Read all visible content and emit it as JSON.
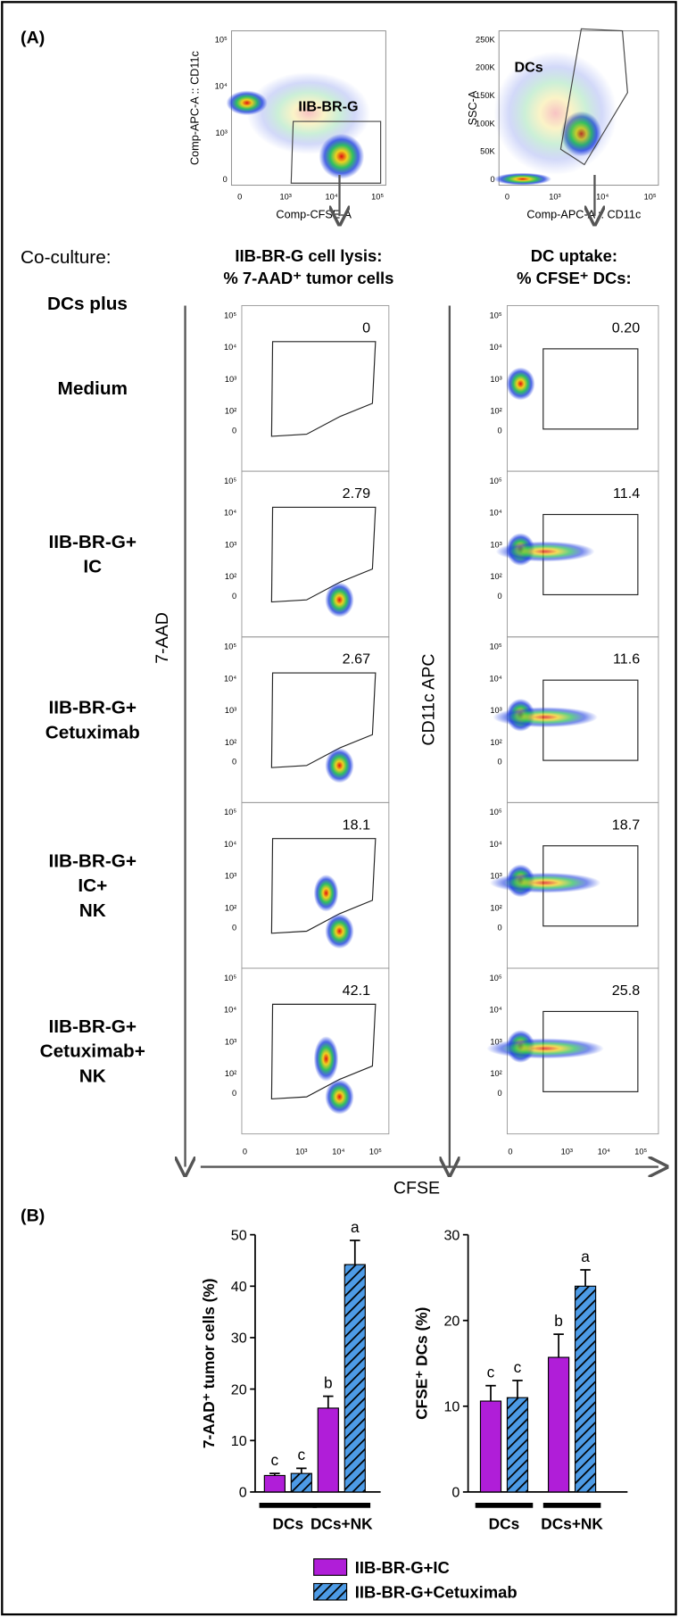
{
  "panel_a": {
    "label": "(A)",
    "gating_plots": [
      {
        "x_label": "Comp-CFSE-A",
        "y_label": "Comp-APC-A :: CD11c",
        "gate": "IIB-BR-G",
        "xticks": [
          "0",
          "10³",
          "10⁴",
          "10⁵"
        ],
        "yticks": [
          "10⁵",
          "10⁴",
          "10³",
          "0"
        ]
      },
      {
        "x_label": "Comp-APC-A :: CD11c",
        "y_label": "SSC-A",
        "gate": "DCs",
        "xticks": [
          "0",
          "10³",
          "10⁴",
          "10⁵"
        ],
        "yticks": [
          "250K",
          "200K",
          "150K",
          "100K",
          "50K",
          "0"
        ]
      }
    ],
    "row_header": "Co-culture:",
    "row_subheader": "DCs plus",
    "columns": [
      {
        "title": [
          "IIB-BR-G cell lysis:",
          "% 7-AAD⁺ tumor cells"
        ],
        "axis_label": "7-AAD",
        "axis_color": "#e8832a",
        "values": [
          "0",
          "2.79",
          "2.67",
          "18.1",
          "42.1"
        ]
      },
      {
        "title": [
          "DC uptake:",
          "% CFSE⁺ DCs:"
        ],
        "axis_label": "CD11c APC",
        "axis_color": "#e8212a",
        "values": [
          "0.20",
          "11.4",
          "11.6",
          "18.7",
          "25.8"
        ]
      }
    ],
    "rows": [
      [
        "Medium"
      ],
      [
        "IIB-BR-G+",
        "IC"
      ],
      [
        "IIB-BR-G+",
        "Cetuximab"
      ],
      [
        "IIB-BR-G+",
        "IC+",
        "NK"
      ],
      [
        "IIB-BR-G+",
        "Cetuximab+",
        "NK"
      ]
    ],
    "flow_yticks": [
      "10⁵",
      "10⁴",
      "10³",
      "10²",
      "0"
    ],
    "flow_xticks": [
      "0",
      "10³",
      "10⁴",
      "10⁵"
    ],
    "x_axis_label": "CFSE",
    "x_axis_color": "#22b14c"
  },
  "panel_b": {
    "label": "(B)"
  },
  "chart_data": [
    {
      "type": "bar",
      "y_label": "7-AAD⁺ tumor cells (%)",
      "categories": [
        "DCs",
        "DCs+NK"
      ],
      "ylim": [
        0,
        50
      ],
      "yticks": [
        0,
        10,
        20,
        30,
        40,
        50
      ],
      "series": [
        {
          "name": "IIB-BR-G+IC",
          "color": "#b01ed8",
          "values": [
            3.2,
            16.3
          ],
          "errors": [
            0.4,
            2.3
          ],
          "letters": [
            "c",
            "b"
          ]
        },
        {
          "name": "IIB-BR-G+Cetuximab",
          "color": "#4d9be6",
          "hatch": true,
          "values": [
            3.6,
            44.2
          ],
          "errors": [
            1.0,
            4.7
          ],
          "letters": [
            "c",
            "a"
          ]
        }
      ]
    },
    {
      "type": "bar",
      "y_label": "CFSE⁺ DCs (%)",
      "categories": [
        "DCs",
        "DCs+NK"
      ],
      "ylim": [
        0,
        30
      ],
      "yticks": [
        0,
        10,
        20,
        30
      ],
      "series": [
        {
          "color": "#b01ed8",
          "values": [
            10.6,
            15.7
          ],
          "errors": [
            1.8,
            2.7
          ],
          "letters": [
            "c",
            "b"
          ]
        },
        {
          "color": "#4d9be6",
          "hatch": true,
          "values": [
            11.0,
            24.0
          ],
          "errors": [
            2.0,
            1.9
          ],
          "letters": [
            "c",
            "a"
          ]
        }
      ]
    }
  ]
}
